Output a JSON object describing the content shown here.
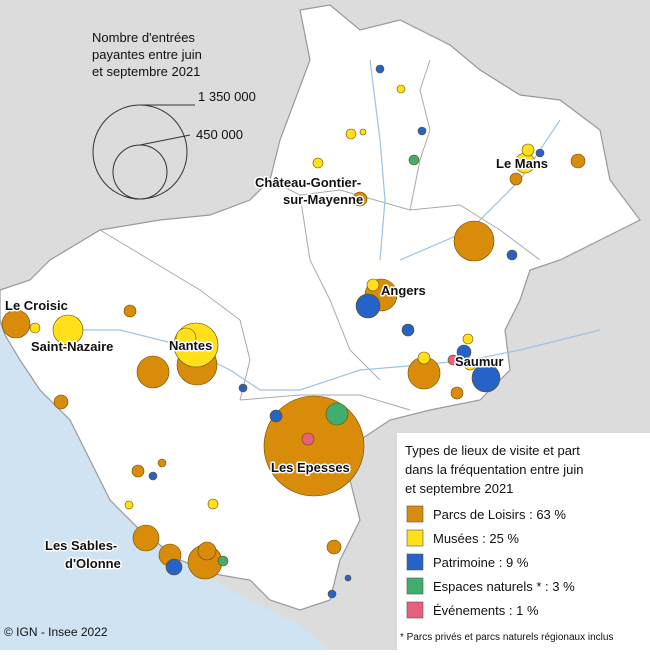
{
  "size_legend": {
    "title": [
      "Nombre d'entrées",
      "payantes entre juin",
      "et septembre 2021"
    ],
    "labels": [
      "1 350 000",
      "450 000"
    ]
  },
  "cities": [
    [
      "Le Mans"
    ],
    [
      "Château-Gontier-",
      "sur-Mayenne"
    ],
    [
      "Angers"
    ],
    [
      "Le Croisic"
    ],
    [
      "Saint-Nazaire"
    ],
    [
      "Nantes"
    ],
    [
      "Saumur"
    ],
    [
      "Les Epesses"
    ],
    [
      "Les Sables-",
      "d'Olonne"
    ]
  ],
  "legend": {
    "title": [
      "Types de lieux de visite et part",
      "dans la fréquentation entre juin",
      "et septembre 2021"
    ],
    "items": [
      {
        "label": "Parcs de Loisirs : 63 %",
        "color": "#d98c0a"
      },
      {
        "label": "Musées : 25 %",
        "color": "#ffe01a"
      },
      {
        "label": "Patrimoine : 9 %",
        "color": "#2563c6"
      },
      {
        "label": "Espaces naturels * : 3 %",
        "color": "#3fae6e"
      },
      {
        "label": "Événements : 1 %",
        "color": "#e8607e"
      }
    ]
  },
  "footnote": "* Parcs privés et parcs naturels régionaux inclus",
  "source": "© IGN - Insee 2022"
}
